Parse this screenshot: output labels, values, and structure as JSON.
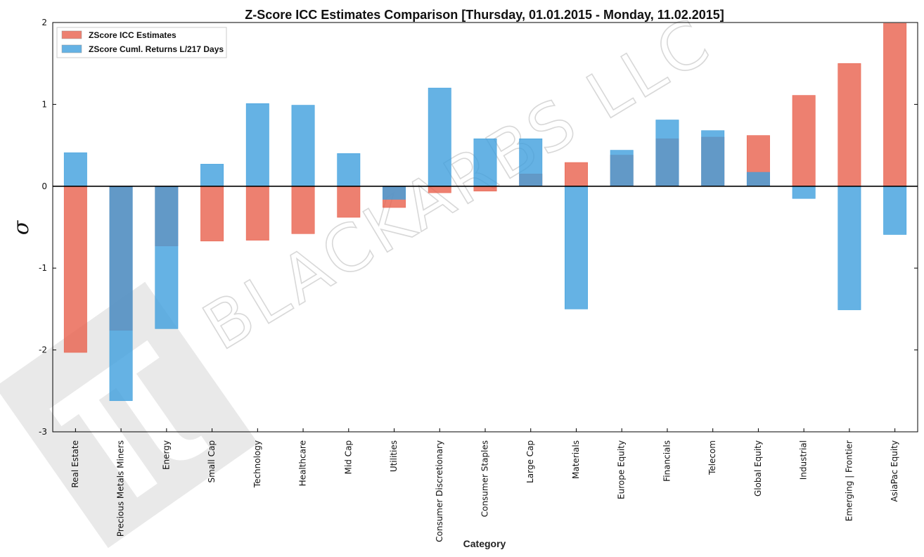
{
  "chart_data": {
    "type": "bar",
    "title": "Z-Score ICC Estimates Comparison [Thursday, 01.01.2015 - Monday, 11.02.2015]",
    "xlabel": "Category",
    "ylabel": "σ",
    "ylim": [
      -3,
      2
    ],
    "yticks": [
      -3,
      -2,
      -1,
      0,
      1,
      2
    ],
    "grid": false,
    "legend_placement": "top-left",
    "categories": [
      "Real Estate",
      "Precious Metals Miners",
      "Energy",
      "Small Cap",
      "Technology",
      "Healthcare",
      "Mid Cap",
      "Utilities",
      "Consumer Discretionary",
      "Consumer Staples",
      "Large Cap",
      "Materials",
      "Europe Equity",
      "Financials",
      "Telecom",
      "Global Equity",
      "Industrial",
      "Emerging | Frontier",
      "AsiaPac Equity"
    ],
    "series": [
      {
        "name": "ZScore ICC Estimates",
        "color": "#e8604c",
        "values": [
          -2.03,
          -1.76,
          -0.73,
          -0.67,
          -0.66,
          -0.58,
          -0.38,
          -0.26,
          -0.08,
          -0.06,
          0.15,
          0.29,
          0.38,
          0.58,
          0.6,
          0.62,
          1.11,
          1.5,
          1.99
        ]
      },
      {
        "name": "ZScore Cuml. Returns L/217 Days",
        "color": "#3e9fdd",
        "values": [
          0.41,
          -2.62,
          -1.74,
          0.27,
          1.01,
          0.99,
          0.4,
          -0.16,
          1.2,
          0.58,
          0.58,
          -1.5,
          0.44,
          0.81,
          0.68,
          0.17,
          -0.15,
          -1.51,
          -0.59
        ]
      }
    ],
    "watermark": {
      "text": "BLACKARBS LLC",
      "logo_icon": "pi-logo-icon"
    }
  }
}
